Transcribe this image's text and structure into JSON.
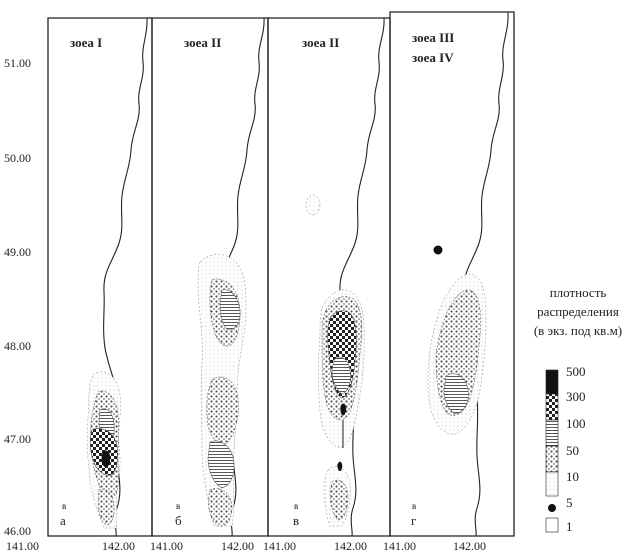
{
  "map": {
    "y_axis_labels": [
      "51.00",
      "50.00",
      "49.00",
      "48.00",
      "47.00",
      "46.00"
    ],
    "panels": [
      {
        "zone_title": "зоеа I",
        "zone_title_2": "",
        "panel_letter": "а",
        "marker": "в",
        "x_left": "141.00",
        "x_right": "142.00"
      },
      {
        "zone_title": "зоеа II",
        "zone_title_2": "",
        "panel_letter": "б",
        "marker": "в",
        "x_left": "141.00",
        "x_right": "142.00"
      },
      {
        "zone_title": "зоеа II",
        "zone_title_2": "",
        "panel_letter": "в",
        "marker": "в",
        "x_left": "141.00",
        "x_right": "142.00"
      },
      {
        "zone_title": "зоеа III",
        "zone_title_2": "зоеа IV",
        "panel_letter": "г",
        "marker": "в",
        "x_left": "141.00",
        "x_right": "142.00"
      }
    ],
    "legend": {
      "title_lines": [
        "плотность",
        "распределения",
        "(в экз. под кв.м)"
      ],
      "levels": [
        "500",
        "300",
        "100",
        "50",
        "10",
        "5",
        "1"
      ]
    }
  }
}
